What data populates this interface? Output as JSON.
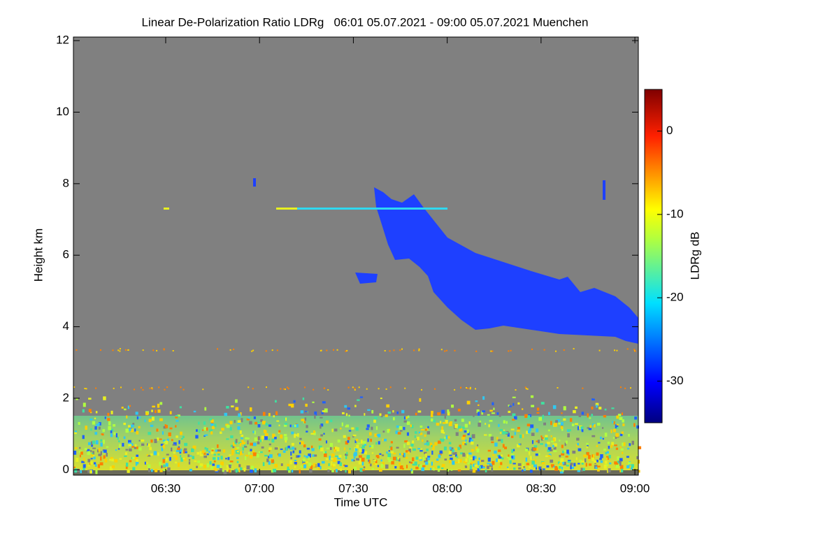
{
  "chart_data": {
    "type": "heatmap",
    "title": "Linear De-Polarization Ratio LDRg   06:01 05.07.2021 - 09:00 05.07.2021 Muenchen",
    "x_label": "Time UTC",
    "y_label": "Height km",
    "xlim": [
      360.5,
      541.1
    ],
    "xticks": [
      {
        "value": 390,
        "label": "06:30"
      },
      {
        "value": 420,
        "label": "07:00"
      },
      {
        "value": 450,
        "label": "07:30"
      },
      {
        "value": 480,
        "label": "08:00"
      },
      {
        "value": 510,
        "label": "08:30"
      },
      {
        "value": 540,
        "label": "09:00"
      }
    ],
    "ylim": [
      -0.15,
      12.1
    ],
    "yticks": [
      0,
      2,
      4,
      6,
      8,
      10,
      12
    ],
    "colorbar": {
      "label": "LDRg dB",
      "lim": [
        -35,
        5
      ],
      "ticks": [
        0,
        -10,
        -20,
        -30
      ]
    }
  }
}
